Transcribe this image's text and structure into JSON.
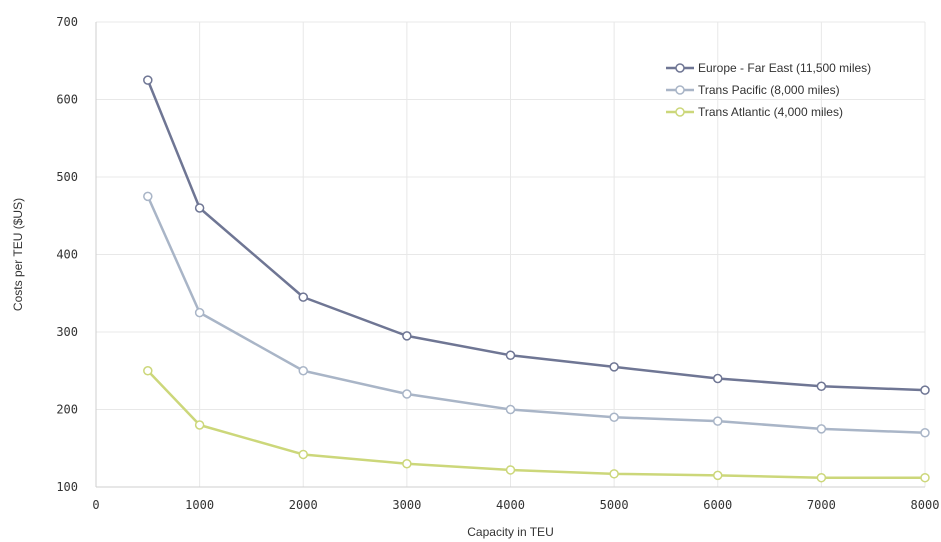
{
  "chart_data": {
    "type": "line",
    "title": "",
    "xlabel": "Capacity in TEU",
    "ylabel": "Costs per TEU ($US)",
    "xlim": [
      0,
      8000
    ],
    "ylim": [
      100,
      700
    ],
    "xticks": [
      0,
      1000,
      2000,
      3000,
      4000,
      5000,
      6000,
      7000,
      8000
    ],
    "yticks": [
      100,
      200,
      300,
      400,
      500,
      600,
      700
    ],
    "grid": true,
    "legend_position": "top-right",
    "x": [
      500,
      1000,
      2000,
      3000,
      4000,
      5000,
      6000,
      7000,
      8000
    ],
    "series": [
      {
        "name": "Europe - Far East (11,500 miles)",
        "color": "#6f7694",
        "values": [
          625,
          460,
          345,
          295,
          270,
          255,
          240,
          230,
          225
        ]
      },
      {
        "name": "Trans Pacific (8,000 miles)",
        "color": "#a9b5c7",
        "values": [
          475,
          325,
          250,
          220,
          200,
          190,
          185,
          175,
          170
        ]
      },
      {
        "name": "Trans Atlantic (4,000 miles)",
        "color": "#ccd77a",
        "values": [
          250,
          180,
          142,
          130,
          122,
          117,
          115,
          112,
          112
        ]
      }
    ]
  }
}
